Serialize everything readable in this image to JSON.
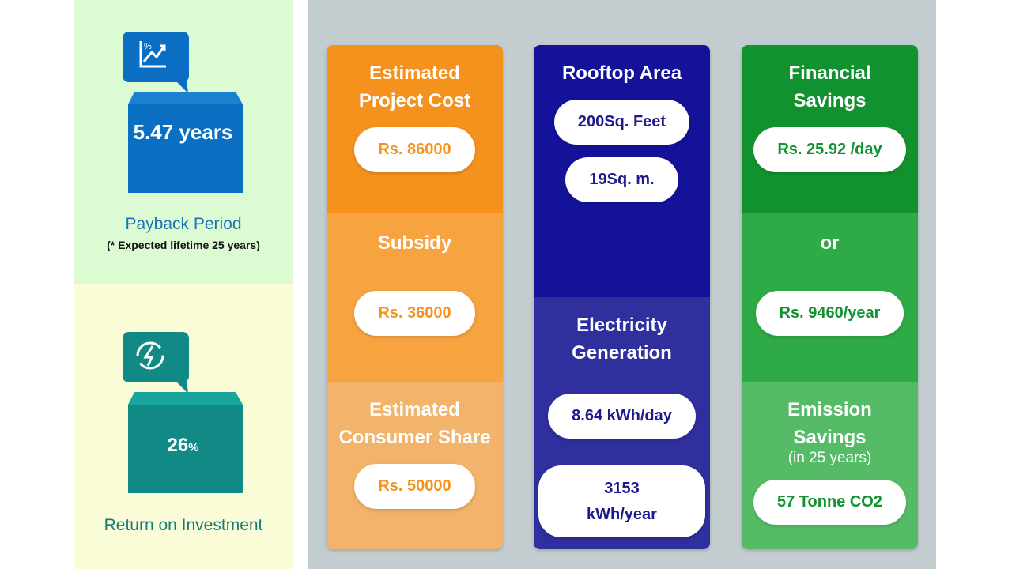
{
  "payback": {
    "value": "5.47 years",
    "label": "Payback Period",
    "note": "(* Expected lifetime 25 years)"
  },
  "roi": {
    "value": "26",
    "unit": "%",
    "label": "Return on Investment"
  },
  "cards": [
    {
      "sections": [
        {
          "title": "Estimated Project Cost",
          "values": [
            "Rs. 86000"
          ]
        },
        {
          "title": "Subsidy",
          "values": [
            "Rs. 36000"
          ]
        },
        {
          "title": "Estimated Consumer Share",
          "values": [
            "Rs. 50000"
          ]
        }
      ]
    },
    {
      "sections": [
        {
          "title": "Rooftop Area",
          "values": [
            "200Sq. Feet",
            "19Sq. m."
          ]
        },
        {
          "title": "Electricity Generation",
          "values": [
            "8.64 kWh/day",
            "3153 kWh/year"
          ]
        }
      ]
    },
    {
      "sections": [
        {
          "title": "Financial Savings",
          "values": [
            "Rs. 25.92 /day"
          ]
        },
        {
          "title": "or",
          "values": [
            "Rs. 9460/year"
          ]
        },
        {
          "title": "Emission Savings",
          "subtitle": "(in 25 years)",
          "values": [
            "57 Tonne CO2"
          ]
        }
      ]
    }
  ]
}
